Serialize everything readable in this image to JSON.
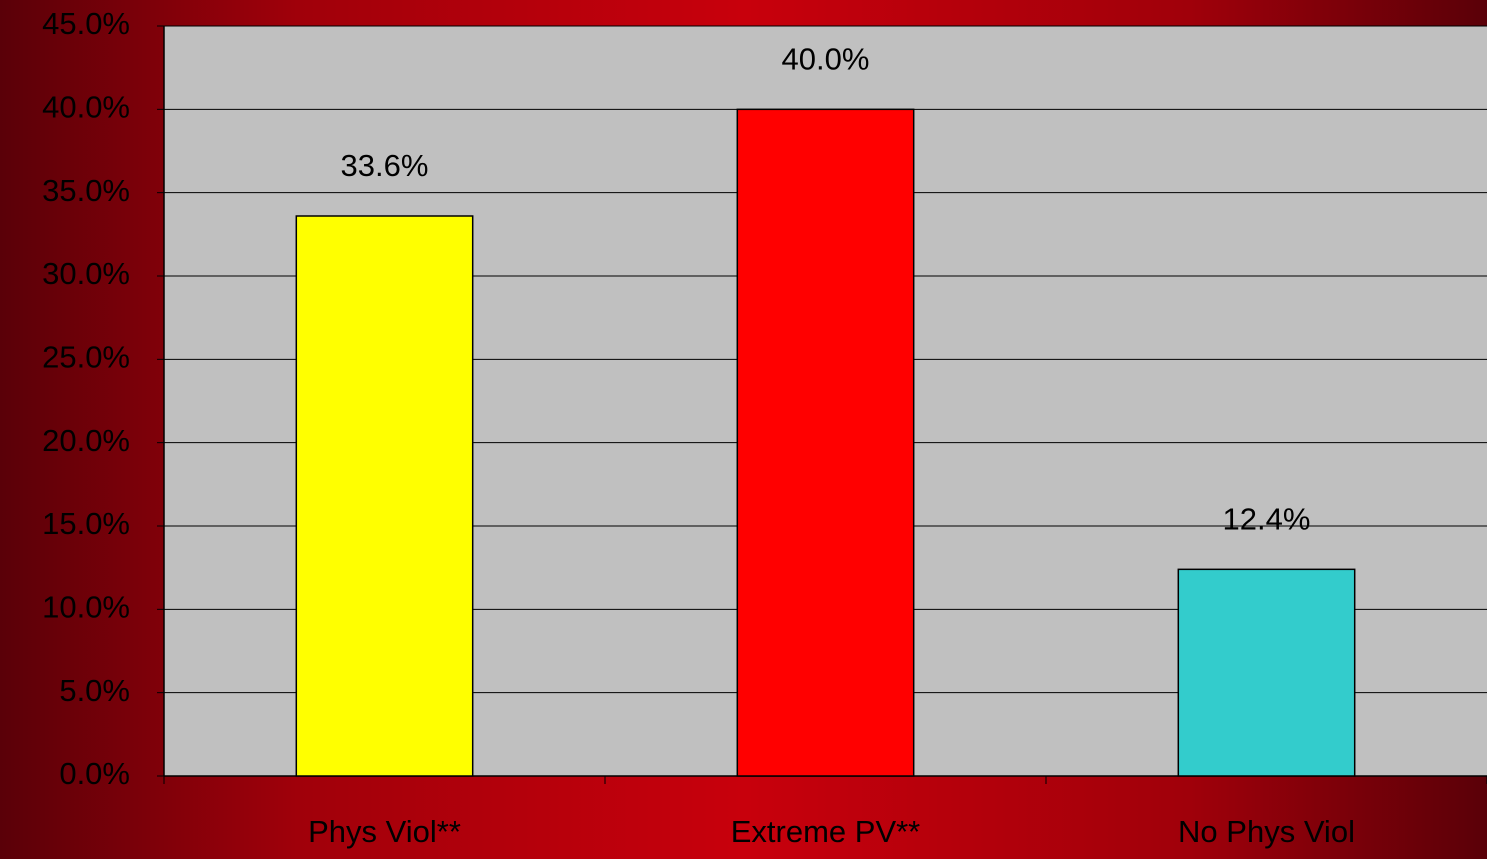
{
  "chart_data": {
    "type": "bar",
    "categories": [
      "Phys Viol**",
      "Extreme PV**",
      "No Phys Viol"
    ],
    "values": [
      33.6,
      40.0,
      12.4
    ],
    "value_labels": [
      "33.6%",
      "40.0%",
      "12.4%"
    ],
    "colors": [
      "#ffff00",
      "#ff0000",
      "#33cccc"
    ],
    "ylim": [
      0,
      45
    ],
    "yticks": [
      {
        "value": 0,
        "label": "0.0%"
      },
      {
        "value": 5,
        "label": "5.0%"
      },
      {
        "value": 10,
        "label": "10.0%"
      },
      {
        "value": 15,
        "label": "15.0%"
      },
      {
        "value": 20,
        "label": "20.0%"
      },
      {
        "value": 25,
        "label": "25.0%"
      },
      {
        "value": 30,
        "label": "30.0%"
      },
      {
        "value": 35,
        "label": "35.0%"
      },
      {
        "value": 40,
        "label": "40.0%"
      },
      {
        "value": 45,
        "label": "45.0%"
      }
    ],
    "grid": true
  }
}
